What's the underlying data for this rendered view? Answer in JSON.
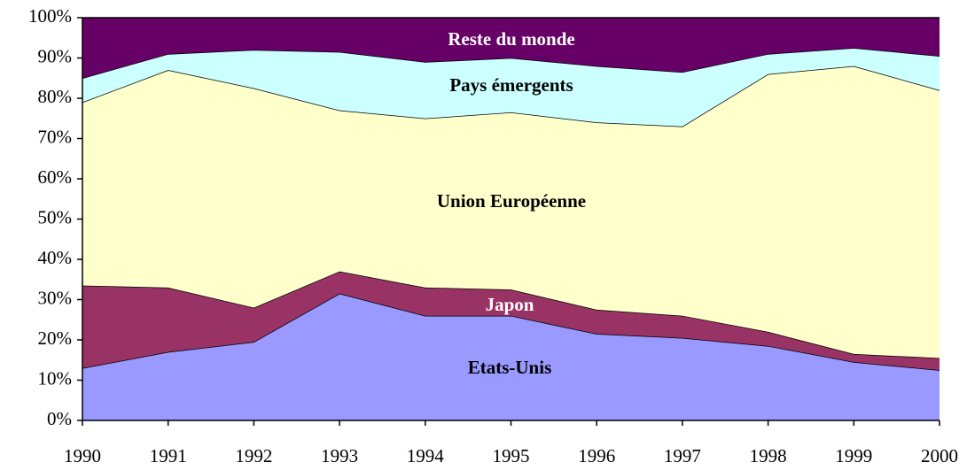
{
  "chart_data": {
    "type": "stacked_area",
    "x": [
      1990,
      1991,
      1992,
      1993,
      1994,
      1995,
      1996,
      1997,
      1998,
      1999,
      2000
    ],
    "series": [
      {
        "name": "Etats-Unis",
        "color": "#9999ff",
        "values": [
          13,
          17,
          19.5,
          31.5,
          26,
          26,
          21.5,
          20.5,
          18.5,
          14.5,
          12.5
        ]
      },
      {
        "name": "Japon",
        "color": "#993366",
        "values": [
          20.5,
          16,
          8.5,
          5.5,
          7,
          6.5,
          6,
          5.5,
          3.5,
          2,
          3
        ]
      },
      {
        "name": "Union Européenne",
        "color": "#ffffcc",
        "values": [
          45.5,
          54,
          54.5,
          40,
          42,
          44,
          46.5,
          47,
          64,
          71.5,
          66.5
        ]
      },
      {
        "name": "Pays émergents",
        "color": "#ccffff",
        "values": [
          6,
          4,
          9.5,
          14.5,
          14,
          13.5,
          14,
          13.5,
          5,
          4.5,
          8.5
        ]
      },
      {
        "name": "Reste du monde",
        "color": "#660066",
        "values": [
          15,
          9,
          8,
          8.5,
          11,
          10,
          12,
          13.5,
          9,
          7.5,
          9.5
        ]
      }
    ],
    "xlim": [
      1990,
      2000
    ],
    "xticks": [
      1990,
      1991,
      1992,
      1993,
      1994,
      1995,
      1996,
      1997,
      1998,
      1999,
      2000
    ],
    "ylim": [
      0,
      100
    ],
    "yticks": [
      {
        "value": 0,
        "label": "0%"
      },
      {
        "value": 10,
        "label": "10%"
      },
      {
        "value": 20,
        "label": "20%"
      },
      {
        "value": 30,
        "label": "30%"
      },
      {
        "value": 40,
        "label": "40%"
      },
      {
        "value": 50,
        "label": "50%"
      },
      {
        "value": 60,
        "label": "60%"
      },
      {
        "value": 70,
        "label": "70%"
      },
      {
        "value": 80,
        "label": "80%"
      },
      {
        "value": 90,
        "label": "90%"
      },
      {
        "value": 100,
        "label": "100%"
      }
    ]
  }
}
